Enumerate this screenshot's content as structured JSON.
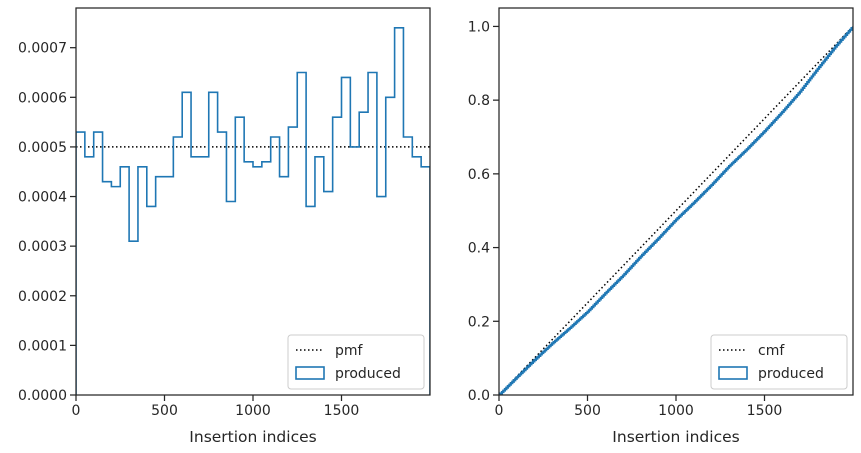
{
  "chart_data": [
    {
      "type": "step",
      "xlabel": "Insertion indices",
      "ylabel": "",
      "xlim": [
        0,
        2000
      ],
      "ylim": [
        0,
        0.00078
      ],
      "xticks": [
        0,
        500,
        1000,
        1500
      ],
      "xtick_labels": [
        "0",
        "500",
        "1000",
        "1500"
      ],
      "yticks": [
        0,
        0.0001,
        0.0002,
        0.0003,
        0.0004,
        0.0005,
        0.0006,
        0.0007
      ],
      "ytick_labels": [
        "0.0000",
        "0.0001",
        "0.0002",
        "0.0003",
        "0.0004",
        "0.0005",
        "0.0006",
        "0.0007"
      ],
      "legend_position": "bottom-right",
      "series": [
        {
          "name": "pmf",
          "style": "dotted",
          "color": "#000000",
          "x": [
            0,
            2000
          ],
          "y": [
            0.0005,
            0.0005
          ]
        },
        {
          "name": "produced",
          "style": "step",
          "color": "#1f77b4",
          "bin_edges": [
            0,
            50,
            100,
            150,
            200,
            250,
            300,
            350,
            400,
            450,
            500,
            550,
            600,
            650,
            700,
            750,
            800,
            850,
            900,
            950,
            1000,
            1050,
            1100,
            1150,
            1200,
            1250,
            1300,
            1350,
            1400,
            1450,
            1500,
            1550,
            1600,
            1650,
            1700,
            1750,
            1800,
            1850,
            1900,
            1950,
            2000
          ],
          "values": [
            0.00053,
            0.00048,
            0.00053,
            0.00043,
            0.00042,
            0.00046,
            0.00031,
            0.00046,
            0.00038,
            0.00044,
            0.00044,
            0.00052,
            0.00061,
            0.00048,
            0.00048,
            0.00061,
            0.00053,
            0.00039,
            0.00056,
            0.00047,
            0.00046,
            0.00047,
            0.00052,
            0.00044,
            0.00054,
            0.00065,
            0.00038,
            0.00048,
            0.00041,
            0.00056,
            0.00064,
            0.0005,
            0.00057,
            0.00065,
            0.0004,
            0.0006,
            0.00074,
            0.00052,
            0.00048,
            0.00046
          ]
        }
      ]
    },
    {
      "type": "line",
      "xlabel": "Insertion indices",
      "ylabel": "",
      "xlim": [
        0,
        2000
      ],
      "ylim": [
        0,
        1.05
      ],
      "xticks": [
        0,
        500,
        1000,
        1500
      ],
      "xtick_labels": [
        "0",
        "500",
        "1000",
        "1500"
      ],
      "yticks": [
        0,
        0.2,
        0.4,
        0.6,
        0.8,
        1.0
      ],
      "ytick_labels": [
        "0.0",
        "0.2",
        "0.4",
        "0.6",
        "0.8",
        "1.0"
      ],
      "legend_position": "bottom-right",
      "series": [
        {
          "name": "cmf",
          "style": "dotted",
          "color": "#000000",
          "x": [
            0,
            2000
          ],
          "y": [
            0,
            1.0
          ]
        },
        {
          "name": "produced",
          "style": "step",
          "color": "#1f77b4",
          "x": [
            0,
            100,
            200,
            300,
            400,
            500,
            600,
            700,
            800,
            900,
            1000,
            1100,
            1200,
            1300,
            1400,
            1500,
            1600,
            1700,
            1800,
            1900,
            2000
          ],
          "y": [
            0,
            0.048,
            0.095,
            0.14,
            0.182,
            0.226,
            0.276,
            0.324,
            0.376,
            0.425,
            0.476,
            0.522,
            0.57,
            0.621,
            0.667,
            0.716,
            0.768,
            0.823,
            0.885,
            0.945,
            1.0
          ]
        }
      ]
    }
  ]
}
